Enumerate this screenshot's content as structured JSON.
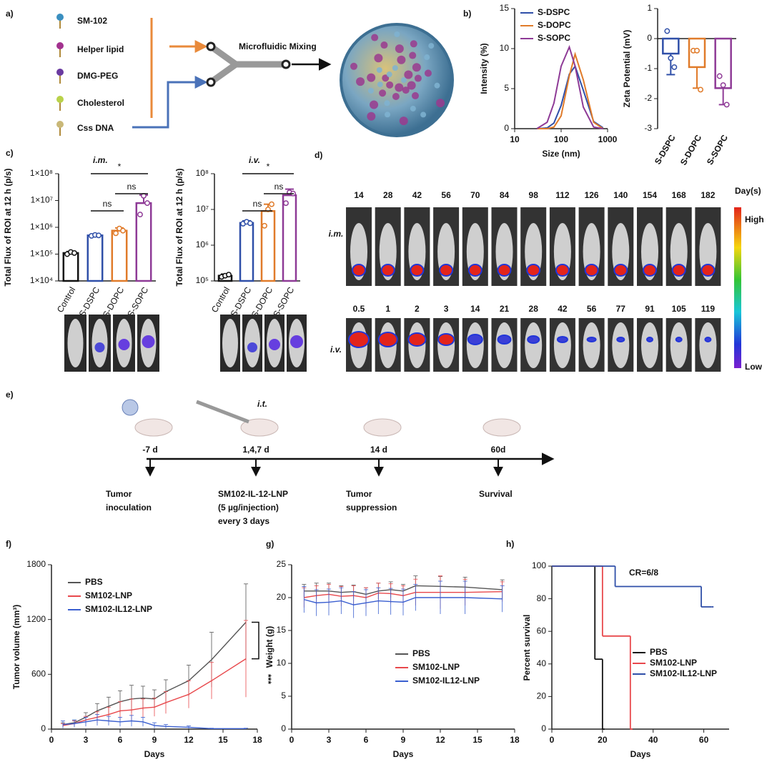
{
  "panel_labels": [
    "a)",
    "b)",
    "c)",
    "d)",
    "e)",
    "f)",
    "g)",
    "h)"
  ],
  "formulation": {
    "components": [
      "SM-102",
      "Helper lipid",
      "DMG-PEG",
      "Cholesterol",
      "Css DNA"
    ],
    "process": "Microfluidic Mixing"
  },
  "chart_data": [
    {
      "type": "line",
      "xlabel": "Size (nm)",
      "ylabel": "Intensity (%)",
      "xscale": "log",
      "x": [
        30,
        50,
        70,
        100,
        150,
        200,
        300,
        500,
        800
      ],
      "xlim": [
        10,
        1000
      ],
      "xticks": [
        10,
        100,
        1000
      ],
      "ylim": [
        0,
        15
      ],
      "yticks": [
        0,
        5,
        10,
        15
      ],
      "series": [
        {
          "name": "S-DSPC",
          "color": "#2f4fa8",
          "values": [
            0,
            0.1,
            0.7,
            2.9,
            6.8,
            7.8,
            4.8,
            0.9,
            0.1
          ]
        },
        {
          "name": "S-DOPC",
          "color": "#e07b2a",
          "values": [
            0,
            0,
            0.2,
            1.6,
            6.6,
            9.3,
            6.1,
            0.8,
            0
          ]
        },
        {
          "name": "S-SOPC",
          "color": "#8e3a96",
          "values": [
            0,
            0.8,
            3.2,
            7.8,
            10.2,
            7.8,
            2.7,
            0.2,
            0
          ]
        }
      ]
    },
    {
      "type": "bar",
      "ylabel": "Zeta Potential (mV)",
      "categories": [
        "S-DSPC",
        "S-DOPC",
        "S-SOPC"
      ],
      "values": [
        -0.5,
        -0.95,
        -1.65
      ],
      "errors": [
        0.7,
        0.7,
        0.55
      ],
      "points": [
        [
          0.25,
          -0.65,
          -0.95
        ],
        [
          -0.4,
          -0.4,
          -1.7
        ],
        [
          -1.25,
          -1.55,
          -2.2
        ]
      ],
      "colors": [
        "#2f4fa8",
        "#e07b2a",
        "#8e3a96"
      ],
      "ylim": [
        -3,
        1
      ],
      "yticks": [
        -3,
        -2,
        -1,
        0,
        1
      ]
    },
    {
      "type": "bar",
      "title": "i.m.",
      "ylabel": "Total Flux of ROI at 12 h (p/s)",
      "yscale": "log",
      "categories": [
        "Control",
        "S-DSPC",
        "S-DOPC",
        "S-SOPC"
      ],
      "values": [
        110000,
        500000,
        750000,
        8000000
      ],
      "errors": [
        15000,
        60000,
        200000,
        8000000
      ],
      "points": [
        [
          100000,
          120000,
          110000
        ],
        [
          480000,
          520000,
          500000
        ],
        [
          600000,
          900000,
          750000
        ],
        [
          3000000,
          15000000,
          8000000
        ]
      ],
      "colors": [
        "#111111",
        "#2f4fa8",
        "#e07b2a",
        "#8e3a96"
      ],
      "ylim": [
        10000,
        100000000
      ],
      "yticks": [
        {
          "value": 10000,
          "label": "1×10⁴"
        },
        {
          "value": 100000,
          "label": "1×10⁵"
        },
        {
          "value": 1000000,
          "label": "1×10⁶"
        },
        {
          "value": 10000000,
          "label": "1×10⁷"
        },
        {
          "value": 100000000,
          "label": "1×10⁸"
        }
      ],
      "significance": [
        "*",
        "ns",
        "ns"
      ]
    },
    {
      "type": "bar",
      "title": "i.v.",
      "ylabel": "Total Flux of ROI at 12 h (p/s)",
      "yscale": "log",
      "categories": [
        "Control",
        "S-DSPC",
        "S-DOPC",
        "S-SOPC"
      ],
      "values": [
        140000,
        4200000,
        9000000,
        25000000
      ],
      "errors": [
        15000,
        600000,
        5000000,
        12000000
      ],
      "points": [
        [
          130000,
          140000,
          150000
        ],
        [
          4000000,
          4500000,
          4100000
        ],
        [
          3500000,
          10000000,
          14000000
        ],
        [
          15000000,
          30000000,
          28000000
        ]
      ],
      "colors": [
        "#111111",
        "#2f4fa8",
        "#e07b2a",
        "#8e3a96"
      ],
      "ylim": [
        100000,
        100000000
      ],
      "yticks": [
        {
          "value": 100000,
          "label": "10⁵"
        },
        {
          "value": 1000000,
          "label": "10⁶"
        },
        {
          "value": 10000000,
          "label": "10⁷"
        },
        {
          "value": 100000000,
          "label": "10⁸"
        }
      ],
      "significance": [
        "*",
        "ns",
        "ns"
      ]
    },
    {
      "type": "line",
      "xlabel": "Days",
      "ylabel": "Tumor volume (mm³)",
      "x": [
        1,
        2,
        3,
        4,
        5,
        6,
        7,
        8,
        9,
        10,
        12,
        14,
        17
      ],
      "xlim": [
        0,
        18
      ],
      "xticks": [
        0,
        3,
        6,
        9,
        12,
        15,
        18
      ],
      "ylim": [
        0,
        1800
      ],
      "yticks": [
        0,
        600,
        1200,
        1800
      ],
      "annotation": "***",
      "series": [
        {
          "name": "PBS",
          "color": "#555555",
          "values": [
            50,
            70,
            130,
            200,
            250,
            300,
            330,
            340,
            330,
            410,
            530,
            760,
            1170
          ],
          "errors": [
            20,
            30,
            50,
            80,
            100,
            120,
            150,
            130,
            100,
            130,
            170,
            300,
            420
          ]
        },
        {
          "name": "SM102-LNP",
          "color": "#e8484c",
          "values": [
            40,
            60,
            100,
            130,
            160,
            200,
            210,
            230,
            240,
            290,
            380,
            530,
            770
          ],
          "errors": [
            20,
            30,
            40,
            60,
            80,
            100,
            120,
            100,
            100,
            120,
            150,
            200,
            420
          ]
        },
        {
          "name": "SM102-IL12-LNP",
          "color": "#3a5fd0",
          "values": [
            50,
            60,
            80,
            100,
            90,
            80,
            90,
            80,
            40,
            30,
            20,
            5,
            5
          ],
          "errors": [
            40,
            40,
            50,
            60,
            50,
            50,
            60,
            50,
            30,
            20,
            15,
            5,
            5
          ]
        }
      ]
    },
    {
      "type": "line",
      "xlabel": "Days",
      "ylabel": "Weight (g)",
      "x": [
        1,
        2,
        3,
        4,
        5,
        6,
        7,
        8,
        9,
        10,
        12,
        14,
        17
      ],
      "xlim": [
        0,
        18
      ],
      "xticks": [
        0,
        3,
        6,
        9,
        12,
        15,
        18
      ],
      "ylim": [
        0,
        25
      ],
      "yticks": [
        0,
        5,
        10,
        15,
        20,
        25
      ],
      "series": [
        {
          "name": "PBS",
          "color": "#555555",
          "values": [
            21,
            21,
            21,
            20.8,
            20.9,
            20.5,
            21,
            21.2,
            21,
            21.8,
            21.7,
            21.6,
            21.2
          ],
          "errors": [
            1,
            1.2,
            1.2,
            1,
            1,
            1,
            1.2,
            1.2,
            1,
            1.5,
            1.5,
            1.5,
            1.5
          ]
        },
        {
          "name": "SM102-LNP",
          "color": "#e8484c",
          "values": [
            20,
            20.3,
            20.5,
            20.2,
            20.3,
            20,
            20.7,
            20.6,
            20.3,
            20.8,
            20.8,
            20.8,
            20.9
          ],
          "errors": [
            1.5,
            1.5,
            1.5,
            1.5,
            1.5,
            1.5,
            1.5,
            1.5,
            1.5,
            2,
            2.5,
            2,
            1.5
          ]
        },
        {
          "name": "SM102-IL12-LNP",
          "color": "#3a5fd0",
          "values": [
            19.7,
            19.2,
            19.3,
            19.5,
            18.9,
            19.2,
            19.5,
            19.4,
            19.3,
            20,
            20,
            20,
            19.8
          ],
          "errors": [
            2,
            2,
            2,
            2,
            2,
            2,
            2,
            2,
            2,
            2,
            2.5,
            2.5,
            2
          ]
        }
      ]
    },
    {
      "type": "step",
      "xlabel": "Days",
      "ylabel": "Percent survival",
      "xlim": [
        0,
        70
      ],
      "xticks": [
        0,
        20,
        40,
        60
      ],
      "ylim": [
        0,
        100
      ],
      "yticks": [
        0,
        20,
        40,
        60,
        80,
        100
      ],
      "annotation": "CR=6/8",
      "series": [
        {
          "name": "PBS",
          "color": "#111111",
          "x": [
            0,
            17,
            20
          ],
          "values": [
            100,
            42.9,
            0
          ]
        },
        {
          "name": "SM102-LNP",
          "color": "#e8484c",
          "x": [
            0,
            20,
            31
          ],
          "values": [
            100,
            57.1,
            0
          ]
        },
        {
          "name": "SM102-IL12-LNP",
          "color": "#2f4fa8",
          "x": [
            0,
            25,
            59,
            63
          ],
          "values": [
            100,
            87.5,
            75,
            75
          ]
        }
      ]
    }
  ],
  "imaging": {
    "legend_title": "Day(s)",
    "legend_high": "High",
    "legend_low": "Low",
    "rows": [
      {
        "label": "i.m.",
        "days": [
          14,
          28,
          42,
          56,
          70,
          84,
          98,
          112,
          126,
          140,
          154,
          168,
          182
        ]
      },
      {
        "label": "i.v.",
        "days": [
          0.5,
          1,
          2,
          3,
          14,
          21,
          28,
          42,
          56,
          77,
          91,
          105,
          119
        ]
      }
    ]
  },
  "timeline": {
    "route": "i.t.",
    "points": [
      {
        "time": "-7 d",
        "event": [
          "Tumor",
          "inoculation"
        ]
      },
      {
        "time": "1,4,7 d",
        "event": [
          "SM102-IL-12-LNP",
          "(5 µg/injection)",
          "every 3 days"
        ]
      },
      {
        "time": "14 d",
        "event": [
          "Tumor",
          "suppression"
        ]
      },
      {
        "time": "60d",
        "event": [
          "Survival"
        ]
      }
    ]
  }
}
